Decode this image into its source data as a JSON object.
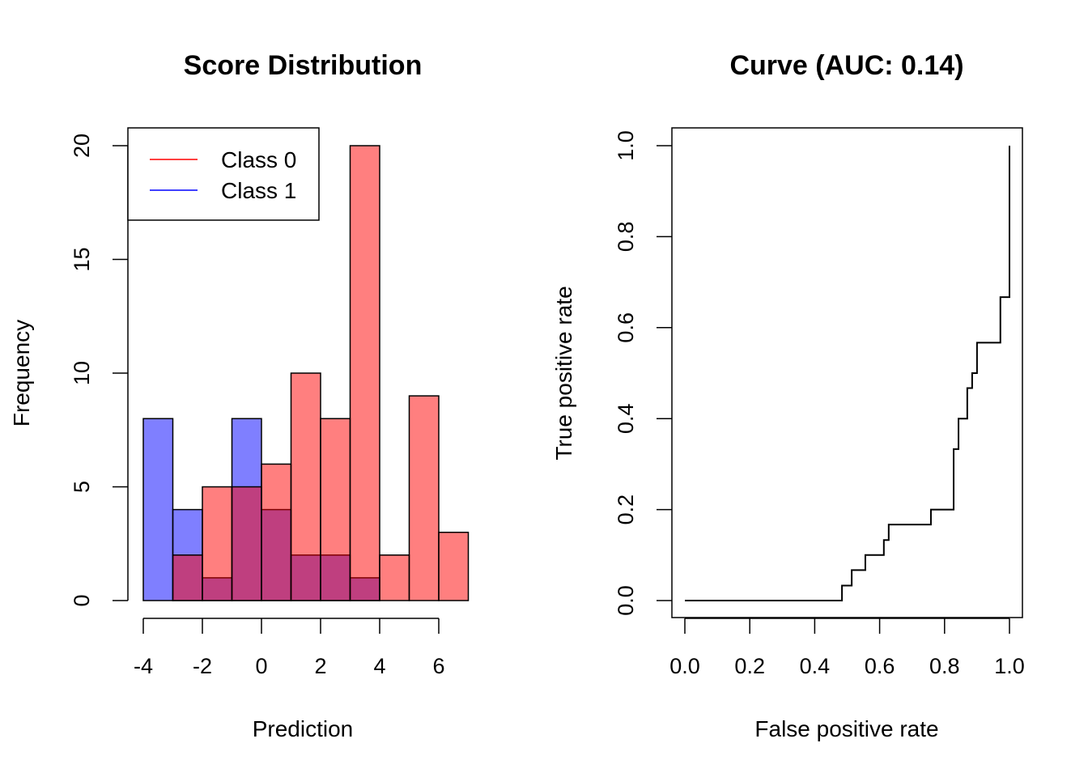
{
  "chart_data": [
    {
      "type": "bar",
      "subtype": "overlaid-histogram",
      "title": "Score Distribution",
      "xlabel": "Prediction",
      "ylabel": "Frequency",
      "bin_edges": [
        -4,
        -3,
        -2,
        -1,
        0,
        1,
        2,
        3,
        4,
        5,
        6,
        7
      ],
      "xticks": [
        -4,
        -2,
        0,
        2,
        4,
        6
      ],
      "xtick_labels": [
        "-4",
        "-2",
        "0",
        "2",
        "4",
        "6"
      ],
      "yticks": [
        0,
        5,
        10,
        15,
        20
      ],
      "ytick_labels": [
        "0",
        "5",
        "10",
        "15",
        "20"
      ],
      "xlim": [
        -4,
        7
      ],
      "ylim": [
        0,
        20
      ],
      "grid": false,
      "legend": {
        "position": "top-left",
        "entries": [
          {
            "label": "Class 0",
            "color": "#ff0000"
          },
          {
            "label": "Class 1",
            "color": "#0000ff"
          }
        ]
      },
      "series": [
        {
          "name": "Class 1",
          "fill": "rgba(0,0,255,0.5)",
          "values": [
            8,
            4,
            1,
            8,
            4,
            2,
            2,
            1,
            0,
            0,
            0
          ]
        },
        {
          "name": "Class 0",
          "fill": "rgba(255,0,0,0.5)",
          "values": [
            0,
            2,
            5,
            5,
            6,
            10,
            8,
            20,
            2,
            9,
            3
          ]
        }
      ]
    },
    {
      "type": "line",
      "subtype": "roc-step",
      "title": "Curve (AUC: 0.14)",
      "xlabel": "False positive rate",
      "ylabel": "True positive rate",
      "xlim": [
        0,
        1
      ],
      "ylim": [
        0,
        1
      ],
      "xticks": [
        0,
        0.2,
        0.4,
        0.6,
        0.8,
        1.0
      ],
      "xtick_labels": [
        "0.0",
        "0.2",
        "0.4",
        "0.6",
        "0.8",
        "1.0"
      ],
      "yticks": [
        0,
        0.2,
        0.4,
        0.6,
        0.8,
        1.0
      ],
      "ytick_labels": [
        "0.0",
        "0.2",
        "0.4",
        "0.6",
        "0.8",
        "1.0"
      ],
      "grid": false,
      "series": [
        {
          "name": "ROC",
          "color": "#000000",
          "points": [
            [
              0.0,
              0.0
            ],
            [
              0.484,
              0.0
            ],
            [
              0.484,
              0.033
            ],
            [
              0.514,
              0.033
            ],
            [
              0.514,
              0.067
            ],
            [
              0.556,
              0.067
            ],
            [
              0.556,
              0.1
            ],
            [
              0.613,
              0.1
            ],
            [
              0.613,
              0.133
            ],
            [
              0.628,
              0.133
            ],
            [
              0.628,
              0.167
            ],
            [
              0.758,
              0.167
            ],
            [
              0.758,
              0.2
            ],
            [
              0.828,
              0.2
            ],
            [
              0.828,
              0.333
            ],
            [
              0.843,
              0.333
            ],
            [
              0.843,
              0.4
            ],
            [
              0.87,
              0.4
            ],
            [
              0.87,
              0.467
            ],
            [
              0.885,
              0.467
            ],
            [
              0.885,
              0.5
            ],
            [
              0.9,
              0.5
            ],
            [
              0.9,
              0.567
            ],
            [
              0.972,
              0.567
            ],
            [
              0.972,
              0.667
            ],
            [
              1.0,
              0.667
            ],
            [
              1.0,
              1.0
            ]
          ]
        }
      ]
    }
  ]
}
